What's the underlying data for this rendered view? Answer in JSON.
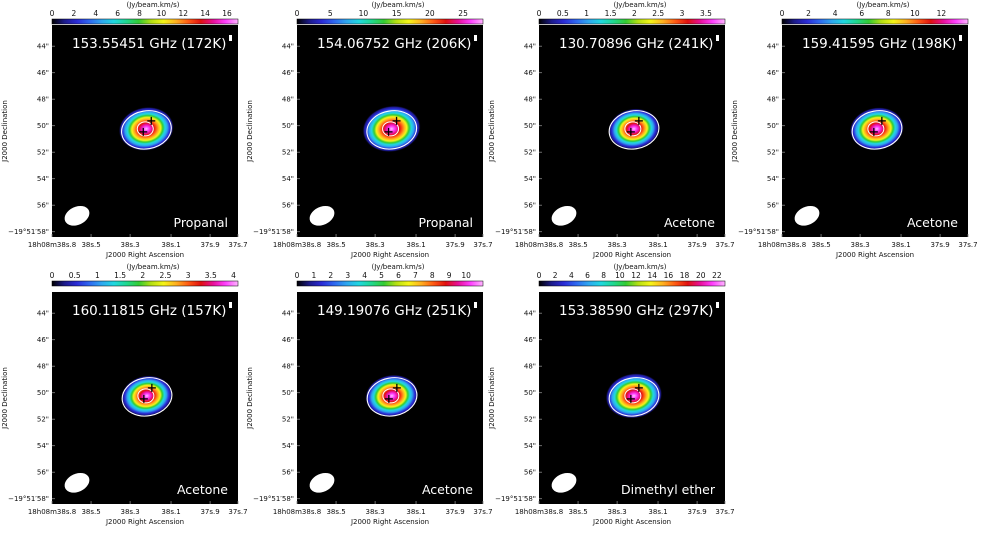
{
  "colorbar_label": "(Jy/beam.km/s)",
  "xlabel": "J2000 Right Ascension",
  "ylabel": "J2000 Declination",
  "y_ticks": [
    "44\"",
    "46\"",
    "48\"",
    "50\"",
    "52\"",
    "54\"",
    "56\"",
    "−19°51′58\""
  ],
  "x_ticks": [
    "18h08m38s.8",
    "38s.5",
    "38s.3",
    "38s.1",
    "37s.9",
    "37s.7"
  ],
  "colormap": [
    "#000000",
    "#1c1a8a",
    "#2b2bd6",
    "#2f67f0",
    "#2fa7f0",
    "#20d8e0",
    "#20d890",
    "#33cc33",
    "#b4e014",
    "#f5f518",
    "#ffb020",
    "#ff5a14",
    "#e01010",
    "#e8109a",
    "#ff40ff",
    "#ffb4ff"
  ],
  "chart_data": [
    {
      "type": "heatmap",
      "frequency_label": "153.55451 GHz (172K)",
      "molecule": "Propanal",
      "colorbar_ticks": [
        "0",
        "2",
        "4",
        "6",
        "8",
        "10",
        "12",
        "14",
        "16"
      ],
      "colorbar_range": [
        0,
        17
      ],
      "peak": 16,
      "emission_center": {
        "ra_offset_arcsec": -0.2,
        "dec_arcsec": 50.1
      }
    },
    {
      "type": "heatmap",
      "frequency_label": "154.06752 GHz (206K)",
      "molecule": "Propanal",
      "colorbar_ticks": [
        "0",
        "5",
        "10",
        "15",
        "20",
        "25"
      ],
      "colorbar_range": [
        0,
        28
      ],
      "peak": 26,
      "emission_center": {
        "ra_offset_arcsec": -0.1,
        "dec_arcsec": 50.1
      }
    },
    {
      "type": "heatmap",
      "frequency_label": "130.70896 GHz (241K)",
      "molecule": "Acetone",
      "colorbar_ticks": [
        "0",
        "0.5",
        "1",
        "1.5",
        "2",
        "2.5",
        "3",
        "3.5"
      ],
      "colorbar_range": [
        0,
        3.9
      ],
      "peak": 3.6,
      "emission_center": {
        "ra_offset_arcsec": 0.0,
        "dec_arcsec": 50.1
      }
    },
    {
      "type": "heatmap",
      "frequency_label": "159.41595 GHz (198K)",
      "molecule": "Acetone",
      "colorbar_ticks": [
        "0",
        "2",
        "4",
        "6",
        "8",
        "10",
        "12"
      ],
      "colorbar_range": [
        0,
        14
      ],
      "peak": 13,
      "emission_center": {
        "ra_offset_arcsec": 0.0,
        "dec_arcsec": 50.2
      }
    },
    {
      "type": "heatmap",
      "frequency_label": "160.11815 GHz (157K)",
      "molecule": "Acetone",
      "colorbar_ticks": [
        "0",
        "0.5",
        "1",
        "1.5",
        "2",
        "2.5",
        "3",
        "3.5",
        "4"
      ],
      "colorbar_range": [
        0,
        4.1
      ],
      "peak": 3.9,
      "emission_center": {
        "ra_offset_arcsec": 0.0,
        "dec_arcsec": 50.1
      }
    },
    {
      "type": "heatmap",
      "frequency_label": "149.19076 GHz (251K)",
      "molecule": "Acetone",
      "colorbar_ticks": [
        "0",
        "1",
        "2",
        "3",
        "4",
        "5",
        "6",
        "7",
        "8",
        "9",
        "10"
      ],
      "colorbar_range": [
        0,
        11
      ],
      "peak": 10,
      "emission_center": {
        "ra_offset_arcsec": 0.0,
        "dec_arcsec": 50.1
      }
    },
    {
      "type": "heatmap",
      "frequency_label": "153.38590 GHz (297K)",
      "molecule": "Dimethyl ether",
      "colorbar_ticks": [
        "0",
        "2",
        "4",
        "6",
        "8",
        "10",
        "12",
        "14",
        "16",
        "18",
        "20",
        "22"
      ],
      "colorbar_range": [
        0,
        23
      ],
      "peak": 21,
      "emission_center": {
        "ra_offset_arcsec": 0.0,
        "dec_arcsec": 50.1
      }
    }
  ]
}
